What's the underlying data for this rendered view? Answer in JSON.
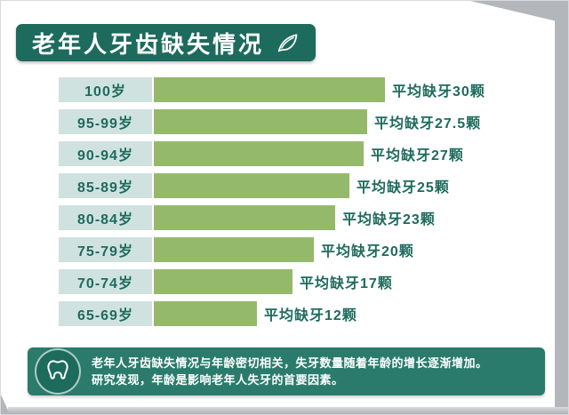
{
  "header": {
    "title": "老年人牙齿缺失情况"
  },
  "chart_data": {
    "type": "bar",
    "orientation": "horizontal",
    "title": "老年人牙齿缺失情况",
    "categories": [
      "100岁",
      "95-99岁",
      "90-94岁",
      "85-89岁",
      "80-84岁",
      "75-79岁",
      "70-74岁",
      "65-69岁"
    ],
    "values": [
      30,
      27.5,
      27,
      25,
      23,
      20,
      17,
      12
    ],
    "value_labels": [
      "平均缺牙30颗",
      "平均缺牙27.5颗",
      "平均缺牙27颗",
      "平均缺牙25颗",
      "平均缺牙23颗",
      "平均缺牙20颗",
      "平均缺牙17颗",
      "平均缺牙12颗"
    ],
    "xlim": [
      0,
      30
    ],
    "xlabel": "",
    "ylabel": "",
    "grid": false,
    "legend": "none"
  },
  "footer": {
    "line1": "老年人牙齿缺失情况与年龄密切相关，失牙数量随着年龄的增长逐渐增加。",
    "line2": "研究发现，年龄是影响老年人失牙的首要因素。"
  },
  "colors": {
    "header_bg": "#1d6b5d",
    "age_box_bg": "#cfe2df",
    "bar": "#94b96b",
    "category_color": "#1d6b5d",
    "label_color": "#1d6b5d",
    "footer_bg": "#2a7b6c",
    "edge": "#b3b6ba",
    "text_on_dark": "#ffffff"
  }
}
